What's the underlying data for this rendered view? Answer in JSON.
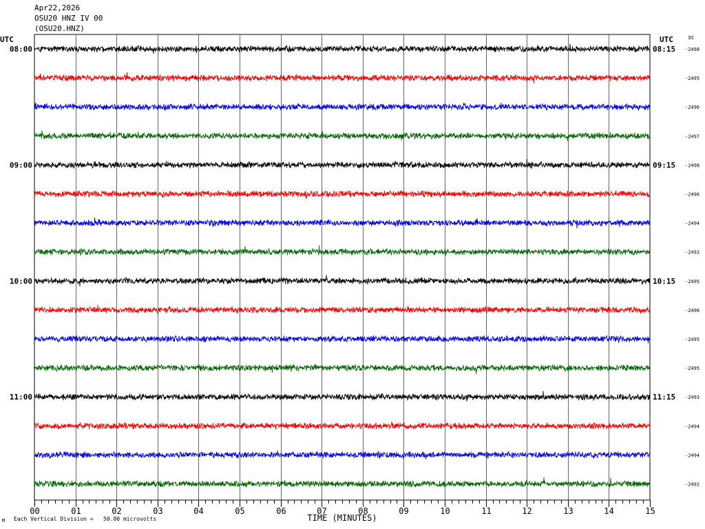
{
  "header": {
    "date": "Apr22,2026",
    "station": "OSU20 HNZ IV 00",
    "channel": "(OSU20.HNZ)"
  },
  "footer": {
    "scale_mark": "M",
    "vertical_division": "Each Vertical Division =   50.00 microvolts"
  },
  "chart_data": {
    "type": "line",
    "title": "",
    "xlabel": "TIME (MINUTES)",
    "left_axis_title": "UTC",
    "right_axis_title": "UTC",
    "dc_column_title": "DC",
    "x_ticks": [
      "00",
      "01",
      "02",
      "03",
      "04",
      "05",
      "06",
      "07",
      "08",
      "09",
      "10",
      "11",
      "12",
      "13",
      "14",
      "15"
    ],
    "xlim": [
      0,
      15
    ],
    "grid": true,
    "trace_colors": [
      "#000000",
      "#ee0000",
      "#0000dd",
      "#006400"
    ],
    "left_time_labels": [
      "08:00",
      "",
      "",
      "",
      "09:00",
      "",
      "",
      "",
      "10:00",
      "",
      "",
      "",
      "11:00",
      "",
      "",
      ""
    ],
    "right_time_labels": [
      "08:15",
      "",
      "",
      "",
      "09:15",
      "",
      "",
      "",
      "10:15",
      "",
      "",
      "",
      "11:15",
      "",
      "",
      ""
    ],
    "dc_offsets": [
      "-2498",
      "-2495",
      "-2496",
      "-2497",
      "-2498",
      "-2496",
      "-2494",
      "-2492",
      "-2495",
      "-2496",
      "-2495",
      "-2495",
      "-2493",
      "-2494",
      "-2494",
      "-2492"
    ]
  }
}
